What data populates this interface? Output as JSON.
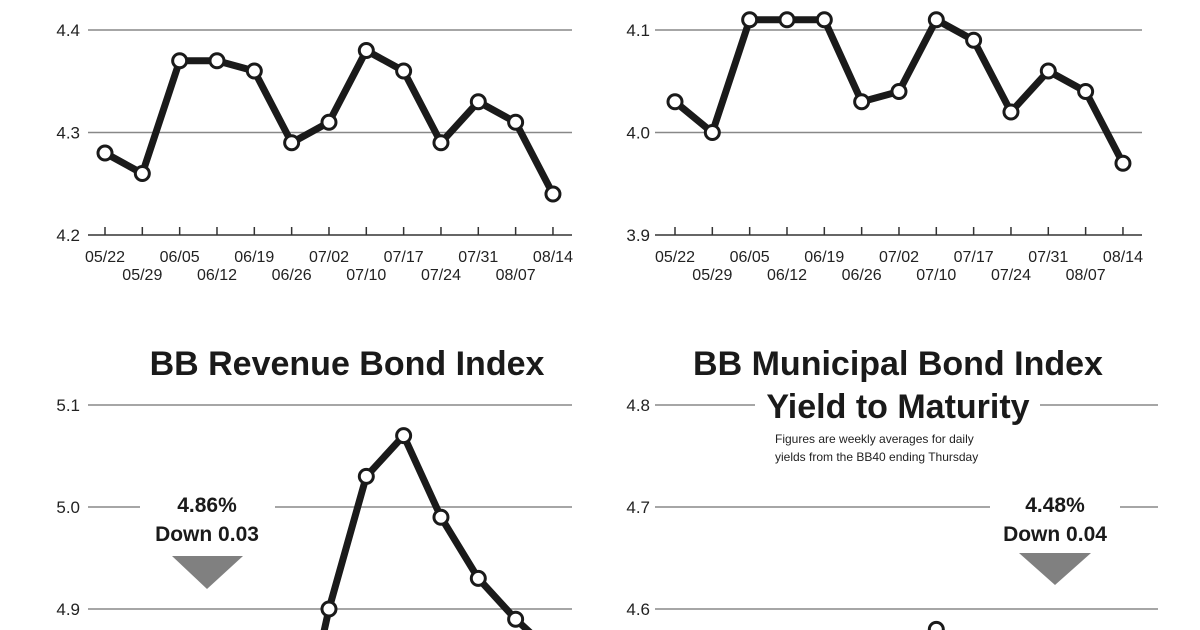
{
  "chart_data": [
    {
      "type": "line",
      "title": "",
      "ylim": [
        4.2,
        4.4
      ],
      "yticks": [
        "4.4",
        "4.3",
        "4.2"
      ],
      "categories": [
        "05/22",
        "05/29",
        "06/05",
        "06/12",
        "06/19",
        "06/26",
        "07/02",
        "07/10",
        "07/17",
        "07/24",
        "07/31",
        "08/07",
        "08/14"
      ],
      "values": [
        4.28,
        4.26,
        4.37,
        4.37,
        4.36,
        4.29,
        4.31,
        4.38,
        4.36,
        4.29,
        4.33,
        4.31,
        4.24
      ],
      "grid": true,
      "line_color": "#1a1a1a"
    },
    {
      "type": "line",
      "title": "",
      "ylim": [
        3.9,
        4.1
      ],
      "yticks": [
        "4.1",
        "4.0",
        "3.9"
      ],
      "categories": [
        "05/22",
        "05/29",
        "06/05",
        "06/12",
        "06/19",
        "06/26",
        "07/02",
        "07/10",
        "07/17",
        "07/24",
        "07/31",
        "08/07",
        "08/14"
      ],
      "values": [
        4.03,
        4.0,
        4.11,
        4.11,
        4.11,
        4.03,
        4.04,
        4.11,
        4.09,
        4.02,
        4.06,
        4.04,
        3.97
      ],
      "grid": true,
      "line_color": "#1a1a1a"
    },
    {
      "type": "line",
      "title": "BB Revenue Bond Index",
      "ylim_visible_top": 5.1,
      "yticks": [
        "5.1",
        "5.0",
        "4.9"
      ],
      "annotation_value": "4.86%",
      "annotation_change": "Down 0.03",
      "annotation_direction": "down",
      "visible_points": [
        {
          "index": 6,
          "value": 4.9
        },
        {
          "index": 7,
          "value": 5.03
        },
        {
          "index": 8,
          "value": 5.07
        },
        {
          "index": 9,
          "value": 4.99
        },
        {
          "index": 10,
          "value": 4.93
        },
        {
          "index": 11,
          "value": 4.89
        }
      ],
      "grid": true,
      "line_color": "#1a1a1a"
    },
    {
      "type": "line",
      "title": "BB Municipal Bond Index",
      "subtitle": "Yield to Maturity",
      "note_line1": "Figures are weekly averages for daily",
      "note_line2": "yields from the BB40 ending Thursday",
      "ylim_visible_top": 4.8,
      "yticks": [
        "4.8",
        "4.7",
        "4.6"
      ],
      "annotation_value": "4.48%",
      "annotation_change": "Down 0.04",
      "annotation_direction": "down",
      "visible_points": [
        {
          "index": 7,
          "value": 4.58
        }
      ],
      "grid": true,
      "line_color": "#1a1a1a"
    }
  ],
  "colors": {
    "line": "#1a1a1a",
    "grid": "#888888",
    "arrow": "#808080",
    "marker_fill": "#ffffff"
  }
}
